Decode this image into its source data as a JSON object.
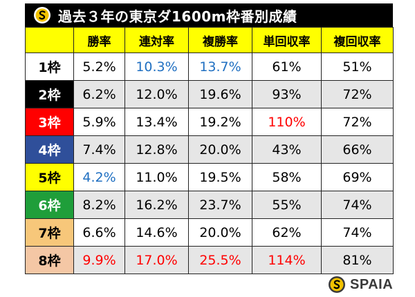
{
  "title": "過去３年の東京ダ1600m枠番別成績",
  "brand": "SPAIA",
  "colors": {
    "header_bg": "#ffff00",
    "highlight_blue": "#1f6fc1",
    "highlight_red": "#ff0000",
    "shade": "#e6e6e6"
  },
  "headers": [
    "",
    "勝率",
    "連対率",
    "複勝率",
    "単回収率",
    "複回収率"
  ],
  "rows": [
    {
      "gate": "1枠",
      "gate_bg": "#ffffff",
      "gate_fg": "#000000",
      "values": [
        "5.2%",
        "10.3%",
        "13.7%",
        "61%",
        "51%"
      ],
      "value_colors": [
        "black",
        "blue",
        "blue",
        "black",
        "black"
      ]
    },
    {
      "gate": "2枠",
      "gate_bg": "#000000",
      "gate_fg": "#ffffff",
      "values": [
        "6.2%",
        "12.0%",
        "19.6%",
        "93%",
        "72%"
      ],
      "value_colors": [
        "black",
        "black",
        "black",
        "black",
        "black"
      ]
    },
    {
      "gate": "3枠",
      "gate_bg": "#ff0000",
      "gate_fg": "#ffffff",
      "values": [
        "5.9%",
        "13.4%",
        "19.2%",
        "110%",
        "72%"
      ],
      "value_colors": [
        "black",
        "black",
        "black",
        "red",
        "black"
      ]
    },
    {
      "gate": "4枠",
      "gate_bg": "#2f4f9a",
      "gate_fg": "#ffffff",
      "values": [
        "7.4%",
        "12.8%",
        "20.0%",
        "43%",
        "66%"
      ],
      "value_colors": [
        "black",
        "black",
        "black",
        "black",
        "black"
      ]
    },
    {
      "gate": "5枠",
      "gate_bg": "#ffff00",
      "gate_fg": "#000000",
      "values": [
        "4.2%",
        "11.0%",
        "19.5%",
        "58%",
        "69%"
      ],
      "value_colors": [
        "blue",
        "black",
        "black",
        "black",
        "black"
      ]
    },
    {
      "gate": "6枠",
      "gate_bg": "#1f9e3a",
      "gate_fg": "#ffffff",
      "values": [
        "8.2%",
        "16.2%",
        "23.7%",
        "55%",
        "74%"
      ],
      "value_colors": [
        "black",
        "black",
        "black",
        "black",
        "black"
      ]
    },
    {
      "gate": "7枠",
      "gate_bg": "#f7c77a",
      "gate_fg": "#000000",
      "values": [
        "6.6%",
        "14.6%",
        "20.0%",
        "62%",
        "74%"
      ],
      "value_colors": [
        "black",
        "black",
        "black",
        "black",
        "black"
      ]
    },
    {
      "gate": "8枠",
      "gate_bg": "#f4c7a5",
      "gate_fg": "#000000",
      "values": [
        "9.9%",
        "17.0%",
        "25.5%",
        "114%",
        "81%"
      ],
      "value_colors": [
        "red",
        "red",
        "red",
        "red",
        "black"
      ]
    }
  ]
}
